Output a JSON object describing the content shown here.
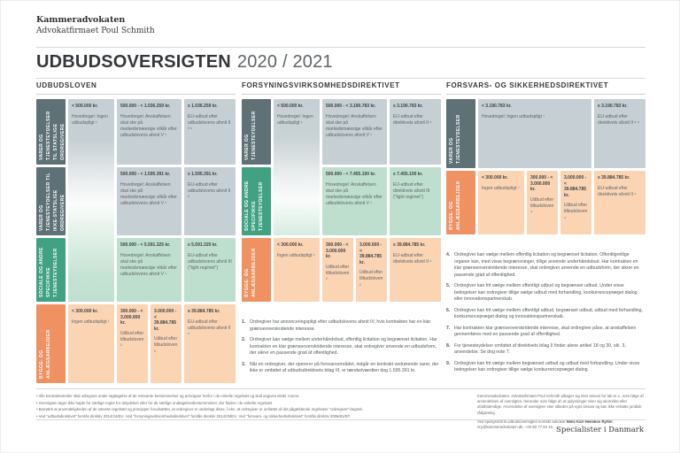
{
  "brand": {
    "line1": "Kammeradvokaten",
    "line2": "Advokatfirmaet Poul Schmith"
  },
  "title": {
    "main": "UDBUDSOVERSIGTEN",
    "period": "2020 / 2021"
  },
  "colors": {
    "slate": "#5E7177",
    "slate_light": "#C6CFD3",
    "green": "#41A283",
    "green_light": "#BEDFCE",
    "orange": "#F09162",
    "orange_light": "#FBD4B4"
  },
  "sections": [
    {
      "heading": "UDBUDSLOVEN",
      "row_labels": [
        "VARER OG TJENESTEYDELSER TIL STATSLIGE ORDREGIVERE",
        "VARER OG TJENESTEYDELSER TIL IKKE-STATSLIGE ORDREGIVERE",
        "SOCIALE OG ANDRE SPECIFIKKE TJENESTEYDELSER",
        "BYGGE- OG ANLÆGSARBEJDER"
      ],
      "cells": {
        "c1span": {
          "amount": "< 500.000 kr.",
          "body": "Hovedregel: Ingen udbudspligt ¹"
        },
        "r1c2": {
          "amount": "500.000 - < 1.036.259 kr.",
          "body": "Hovedregel: Anskaffelsen skal ske på markedsmæssige vilkår efter udbudslovens afsnit V ¹"
        },
        "r1c3": {
          "amount": "≥ 1.036.259 kr.",
          "body": "EU-udbud efter udbudslovens afsnit II ³ ⁵"
        },
        "r2c2": {
          "amount": "500.000 - < 1.595.391 kr.",
          "body": "Hovedregel: Anskaffelsen skal ske på markedsmæssige vilkår efter udbudslovens afsnit V ¹"
        },
        "r2c3": {
          "amount": "≥ 1.595.391 kr.",
          "body": "EU-udbud efter udbudslovens afsnit II ⁵"
        },
        "r3c2": {
          "amount": "500.000 - < 5.591.325 kr.",
          "body": "Hovedregel: Anskaffelsen skal ske på markedsmæssige vilkår efter udbudslovens afsnit V ¹"
        },
        "r3c3": {
          "amount": "≥ 5.591.325 kr.",
          "body": "EU-udbud efter udbudslovens afsnit III (\"light regimet\")"
        },
        "r4c1": {
          "amount": "< 300.000 kr.",
          "body": "Ingen udbudspligt ¹"
        },
        "r4c2a": {
          "amount": "300.000 - < 3.000.000 kr.",
          "body": "Udbud efter tilbudsloven ²"
        },
        "r4c2b": {
          "amount": "3.000.000 - < 39.884.785 kr.",
          "body": "Udbud efter tilbudsloven ²"
        },
        "r4c3": {
          "amount": "≥ 39.884.785 kr.",
          "body": "EU-udbud efter udbudslovens afsnit II ⁵"
        }
      }
    },
    {
      "heading": "FORSYNINGSVIRKSOMHEDSDIREKTIVET",
      "row_labels": [
        "VARER OG TJENESTEYDELSER",
        "SOCIALE OG ANDRE SPECIFIKKE TJENESTEYDELSER",
        "BYGGE- OG ANLÆGSARBEJDER"
      ],
      "cells": {
        "c1span": {
          "amount": "< 500.000 kr.",
          "body": "Hovedregel: Ingen udbudspligt ¹"
        },
        "r1c2": {
          "amount": "500.000 - < 3.190.783 kr.",
          "body": "Hovedregel: Anskaffelsen skal ske på markedsmæssige vilkår efter udbudslovens afsnit V ¹"
        },
        "r1c3": {
          "amount": "≥ 3.190.783 kr.",
          "body": "EU-udbud efter direktivets afsnit II ⁶"
        },
        "r2c2": {
          "amount": "500.000 - < 7.455.100 kr.",
          "body": "Hovedregel: Anskaffelsen skal ske på markedsmæssige vilkår efter udbudslovens afsnit V ¹"
        },
        "r2c3": {
          "amount": "≥ 7.455.100 kr.",
          "body": "EU-udbud efter direktivets afsnit III (\"light regimet\")"
        },
        "r3c1": {
          "amount": "< 300.000 kr.",
          "body": "Ingen udbudspligt ¹"
        },
        "r3c2a": {
          "amount": "300.000 - < 3.000.000 kr.",
          "body": "Udbud efter tilbudsloven ²"
        },
        "r3c2b": {
          "amount": "3.000.000 - < 39.884.785 kr.",
          "body": "Udbud efter tilbudsloven ²"
        },
        "r3c3": {
          "amount": "≥ 39.884.785 kr.",
          "body": "EU-udbud efter direktivets afsnit II ⁶"
        }
      }
    },
    {
      "heading": "FORSVARS- OG SIKKERHEDSDIREKTIVET",
      "row_labels": [
        "VARER OG TJENESTEYDELSER",
        "BYGGE- OG ANLÆGSARBEJDER"
      ],
      "cells": {
        "r1c1": {
          "amount": "< 3.190.783 kr.",
          "body": "Hovedregel: Ingen udbudspligt ⁷"
        },
        "r1c3": {
          "amount": "≥ 3.190.783 kr.",
          "body": "EU-udbud efter direktivets afsnit II ⁸ ⁹"
        },
        "r2c1": {
          "amount": "< 300.000 kr.",
          "body": "Ingen udbudspligt ⁷"
        },
        "r2c2a": {
          "amount": "300.000 - < 3.000.000 kr.",
          "body": "Udbud efter tilbudsloven ⁴"
        },
        "r2c2b": {
          "amount": "3.000.000 - < 39.884.785 kr.",
          "body": "Udbud efter tilbudsloven ⁴"
        },
        "r2c3": {
          "amount": "≥ 39.884.785 kr.",
          "body": "EU-udbud efter direktivets afsnit II ⁹"
        }
      }
    }
  ],
  "notes_mid": [
    {
      "num": "1.",
      "text": "Ordregiver har annonceringspligt efter udbudslovens afsnit IV, hvis kontrakten har en klar grænseoverskridende interesse."
    },
    {
      "num": "2.",
      "text": "Ordregiver kan vælge mellem underhåndsbud, offentlig licitation og begrænset licitation. Har kontrakten en klar grænseoverskridende interesse, skal ordregiver anvende en udbudsform, der sikrer en passende grad af offentlighed."
    },
    {
      "num": "3.",
      "text": "Når en ordregiver, der opererer på forsvarsområdet, indgår en kontrakt vedrørende varer, der ikke er omfattet af udbudsdirektivets bilag III, er tærskelværdien dog 1.595.391 kr."
    }
  ],
  "notes_right": [
    {
      "num": "4.",
      "text": "Ordregiver kan vælge mellem offentlig licitation og begrænset licitation. Offentligretlige organer kan, med visse begrænsninger, tillige anvende underhåndsbud. Har kontrakten en klar grænseoverskridende interesse, skal ordregiver anvende en udbudsform, der sikrer en passende grad af offentlighed."
    },
    {
      "num": "5.",
      "text": "Ordregiver kan frit vælge mellem offentligt udbud og begrænset udbud. Under visse betingelser kan ordregiver tillige vælge udbud med forhandling, konkurrencepræget dialog eller innovationspartnerskab."
    },
    {
      "num": "6.",
      "text": "Ordregiver kan frit vælge mellem offentligt udbud, begrænset udbud, udbud med forhandling, konkurrencepræget dialog og innovationspartnerskab."
    },
    {
      "num": "7.",
      "text": "Har kontrakten klar grænseoverskridende interesse, skal ordregiver påse, at anskaffelsen gennemføres med en passende grad af offentlighed."
    },
    {
      "num": "8.",
      "text": "For tjenesteydelser omfattet af direktivets bilag II finder alene artikel 18 og 30, stk. 3, anvendelse. Se dog note 7."
    },
    {
      "num": "9.",
      "text": "Ordregiver kan frit vælge mellem begrænset udbud og udbud med forhandling. Under visse betingelser kan ordregiver tillige vælge konkurrencepræget dialog."
    }
  ],
  "footnotes": [
    "• Alle kontraktværdier skal udregnes under iagttagelse af de relevante bestemmelser og principper herfor i de enkelte regelsæt og skal angives ekskl. moms.",
    "• Oversigten tager ikke højde for særlige regler for delydelser eller for de særlige undtagelsesbestemmelser, der findes i de enkelte regelsæt.",
    "• Bemærk at anvendeligheden af de nævnte regelsæt og principper forudsætter, at ordregiver er underlagt disse, f.eks. at ordregiver er omfattet af det pågældende regelsæts \"ordregiver\"-begreb.",
    "• Ved \"udbudsdirektivet\" forstås direktiv 2014/24/EU. Ved \"forsyningsvirksomhedsdirektivet\" forstås direktiv 2014/25/EU. Ved \"forsvars- og sikkerhedsdirektivet\" forstås direktiv 2009/81/EF."
  ],
  "disclaimer": {
    "p1": "Kammeradvokaten, Advokatfirmaet Poul Schmith påtager sig intet ansvar for tab m.v., som følge af anvendelsen af oversigten, herunder som følge af, at oplysninger viser sig ukorrekte eller ufuldstændige. Anvendelse af oversigten sker således på eget ansvar og kan ikke erstatte juridisk rådgivning.",
    "p2_pre": "Ved spørgsmål til udbudsoversigten kontakt advokat ",
    "p2_name": "Niels Karl Heilskov Rytter",
    "p2_post": ", nry@kammeradvokaten.dk, +45 50 77 84 16."
  },
  "tagline": "Specialister i Danmark"
}
